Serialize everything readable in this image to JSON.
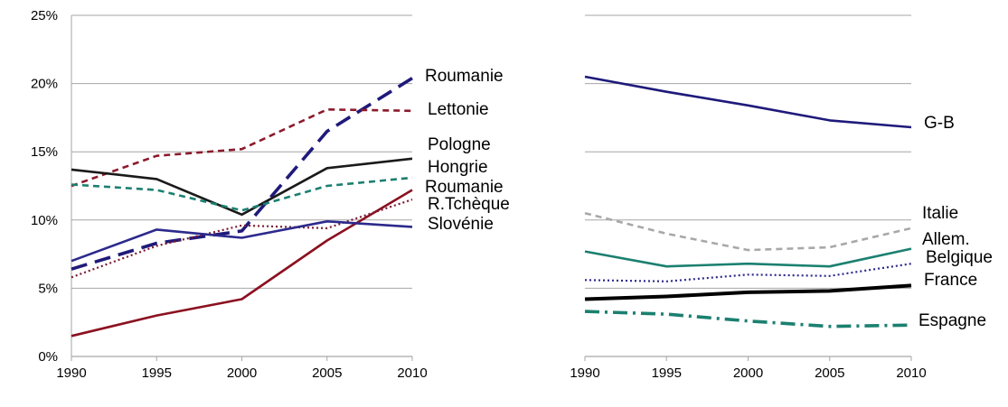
{
  "chart_data": [
    {
      "type": "line",
      "x": [
        1990,
        1995,
        2000,
        2005,
        2010
      ],
      "ylim": [
        0,
        25
      ],
      "yticks": [
        "0%",
        "5%",
        "10%",
        "15%",
        "20%",
        "25%"
      ],
      "xticks": [
        "1990",
        "1995",
        "2000",
        "2005",
        "2010"
      ],
      "grid": true,
      "series": [
        {
          "name": "Roumanie",
          "values": [
            6.4,
            8.3,
            9.2,
            16.5,
            20.4
          ],
          "color": "#1f1a7a",
          "dash": "long-dash"
        },
        {
          "name": "Lettonie",
          "values": [
            12.5,
            14.7,
            15.2,
            18.1,
            18.0
          ],
          "color": "#8b1a2b",
          "dash": "dash"
        },
        {
          "name": "Pologne",
          "values": [
            13.7,
            13.0,
            10.4,
            13.8,
            14.5
          ],
          "color": "#1a1a1a",
          "dash": "solid"
        },
        {
          "name": "Hongrie",
          "values": [
            12.6,
            12.2,
            10.7,
            12.5,
            13.1
          ],
          "color": "#1b8070",
          "dash": "dash"
        },
        {
          "name": "Roumanie",
          "values": [
            1.5,
            3.0,
            4.2,
            8.5,
            12.2
          ],
          "color": "#8b1020",
          "dash": "solid"
        },
        {
          "name": "R.Tchèque",
          "values": [
            5.8,
            8.1,
            9.6,
            9.4,
            11.5
          ],
          "color": "#7a1a30",
          "dash": "dot"
        },
        {
          "name": "Slovénie",
          "values": [
            7.0,
            9.3,
            8.7,
            9.9,
            9.5
          ],
          "color": "#2c2a8c",
          "dash": "solid"
        }
      ]
    },
    {
      "type": "line",
      "x": [
        1990,
        1995,
        2000,
        2005,
        2010
      ],
      "ylim": [
        0,
        25
      ],
      "xticks": [
        "1990",
        "1995",
        "2000",
        "2005",
        "2010"
      ],
      "grid": true,
      "series": [
        {
          "name": "G-B",
          "values": [
            20.5,
            19.4,
            18.4,
            17.3,
            16.8
          ],
          "color": "#1f1a7a",
          "dash": "solid"
        },
        {
          "name": "Italie",
          "values": [
            10.5,
            9.0,
            7.8,
            8.0,
            9.4
          ],
          "color": "#a8a8a8",
          "dash": "dash"
        },
        {
          "name": "Allem.",
          "values": [
            7.7,
            6.6,
            6.8,
            6.6,
            7.9
          ],
          "color": "#1b8070",
          "dash": "solid"
        },
        {
          "name": "Belgique",
          "values": [
            5.6,
            5.5,
            6.0,
            5.9,
            6.8
          ],
          "color": "#2c2a8c",
          "dash": "dot"
        },
        {
          "name": "France",
          "values": [
            4.2,
            4.4,
            4.7,
            4.8,
            5.2
          ],
          "color": "#000000",
          "dash": "thick"
        },
        {
          "name": "Espagne",
          "values": [
            3.3,
            3.1,
            2.6,
            2.2,
            2.3
          ],
          "color": "#1b8070",
          "dash": "dashdot"
        }
      ]
    }
  ]
}
